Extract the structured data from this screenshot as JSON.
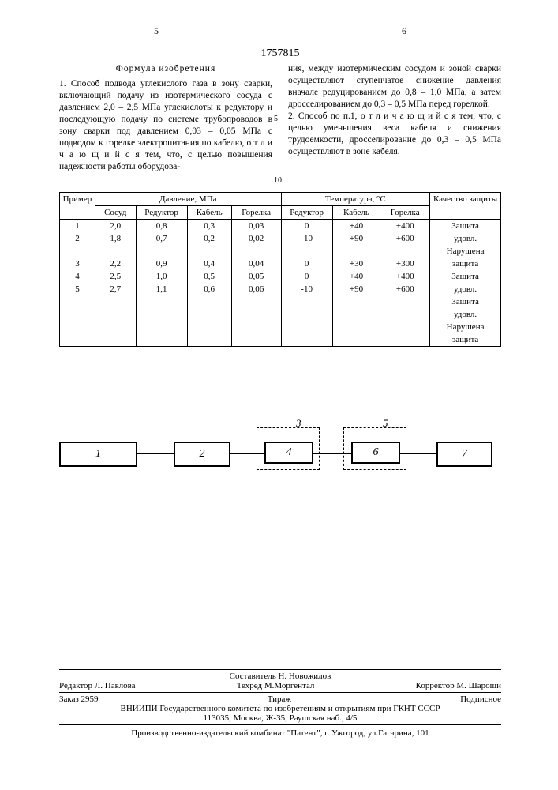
{
  "doc_number": "1757815",
  "page_left": "5",
  "page_right": "6",
  "marker5": "5",
  "marker10": "10",
  "left_col": {
    "title": "Формула изобретения",
    "text": "1. Способ подвода углекислого газа в зону сварки, включающий подачу из изотермического сосуда с давлением 2,0 – 2,5 МПа углекислоты к редуктору и последующую подачу по системе трубопроводов в зону сварки под давлением 0,03 – 0,05 МПа с подводом к горелке электропитания по кабелю, о т л и ч а ю щ и й с я тем, что, с целью повышения надежности работы оборудова-"
  },
  "right_col": {
    "text": "ния, между изотермическим сосудом и зоной сварки осуществляют ступенчатое снижение давления вначале редуцированием до 0,8 – 1,0 МПа, а затем дросселированием до 0,3 – 0,5 МПа перед горелкой.\n2. Способ по п.1, о т л и ч а ю щ и й с я тем, что, с целью уменьшения веса кабеля и снижения трудоемкости, дросселирование до 0,3 – 0,5 МПа осуществляют в зоне кабеля."
  },
  "table": {
    "head": {
      "c0": "Пример",
      "g1": "Давление, МПа",
      "g2": "Температура, °C",
      "c8": "Качество защиты",
      "sub": [
        "Сосуд",
        "Редуктор",
        "Кабель",
        "Горелка",
        "Редуктор",
        "Кабель",
        "Горелка"
      ]
    },
    "rows": [
      [
        "1",
        "2,0",
        "0,8",
        "0,3",
        "0,03",
        "0",
        "+40",
        "+400",
        "Защита"
      ],
      [
        "2",
        "1,8",
        "0,7",
        "0,2",
        "0,02",
        "-10",
        "+90",
        "+600",
        "удовл."
      ],
      [
        "",
        "",
        "",
        "",
        "",
        "",
        "",
        "",
        "Нарушена"
      ],
      [
        "3",
        "2,2",
        "0,9",
        "0,4",
        "0,04",
        "0",
        "+30",
        "+300",
        "защита"
      ],
      [
        "4",
        "2,5",
        "1,0",
        "0,5",
        "0,05",
        "0",
        "+40",
        "+400",
        "Защита"
      ],
      [
        "5",
        "2,7",
        "1,1",
        "0,6",
        "0,06",
        "-10",
        "+90",
        "+600",
        "удовл."
      ],
      [
        "",
        "",
        "",
        "",
        "",
        "",
        "",
        "",
        "Защита"
      ],
      [
        "",
        "",
        "",
        "",
        "",
        "",
        "",
        "",
        "удовл."
      ],
      [
        "",
        "",
        "",
        "",
        "",
        "",
        "",
        "",
        "Нарушена"
      ],
      [
        "",
        "",
        "",
        "",
        "",
        "",
        "",
        "",
        "защита"
      ]
    ]
  },
  "diagram": {
    "b1": "1",
    "b2": "2",
    "b4": "4",
    "b6": "6",
    "b7": "7",
    "l3": "3",
    "l5": "5"
  },
  "footer": {
    "compiler": "Составитель    Н. Новожилов",
    "editor": "Редактор  Л. Павлова",
    "tehred": "Техред М.Моргентал",
    "corrector": "Корректор  М. Шароши",
    "order": "Заказ 2959",
    "tirazh": "Тираж",
    "subscr": "Подписное",
    "org": "ВНИИПИ Государственного комитета по изобретениям и открытиям при ГКНТ СССР",
    "addr": "113035, Москва, Ж-35, Раушская наб., 4/5",
    "prod": "Производственно-издательский комбинат \"Патент\", г. Ужгород, ул.Гагарина, 101"
  }
}
